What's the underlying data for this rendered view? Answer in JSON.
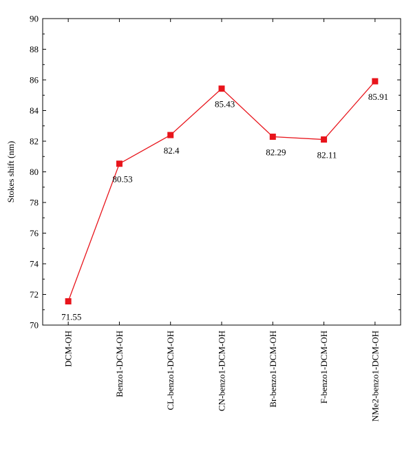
{
  "chart_data": {
    "type": "line",
    "title": "",
    "xlabel": "",
    "ylabel": "Stokes shift (nm)",
    "categories": [
      "DCM-OH",
      "Benzo1-DCM-OH",
      "CL-benzo1-DCM-OH",
      "CN-benzo1-DCM-OH",
      "Br-benzo1-DCM-OH",
      "F-benzo1-DCM-OH",
      "NMe2-benzo1-DCM-OH"
    ],
    "values": [
      71.55,
      80.53,
      82.4,
      85.43,
      82.29,
      82.11,
      85.91
    ],
    "data_labels": [
      "71.55",
      "80.53",
      "82.4",
      "85.43",
      "82.29",
      "82.11",
      "85.91"
    ],
    "ylim": [
      70,
      90
    ],
    "yticks": [
      70,
      72,
      74,
      76,
      78,
      80,
      82,
      84,
      86,
      88,
      90
    ],
    "grid": false,
    "legend": "none",
    "marker": "square",
    "colors": {
      "line": "#e8141b",
      "marker": "#e8141b",
      "axis": "#000000"
    }
  }
}
